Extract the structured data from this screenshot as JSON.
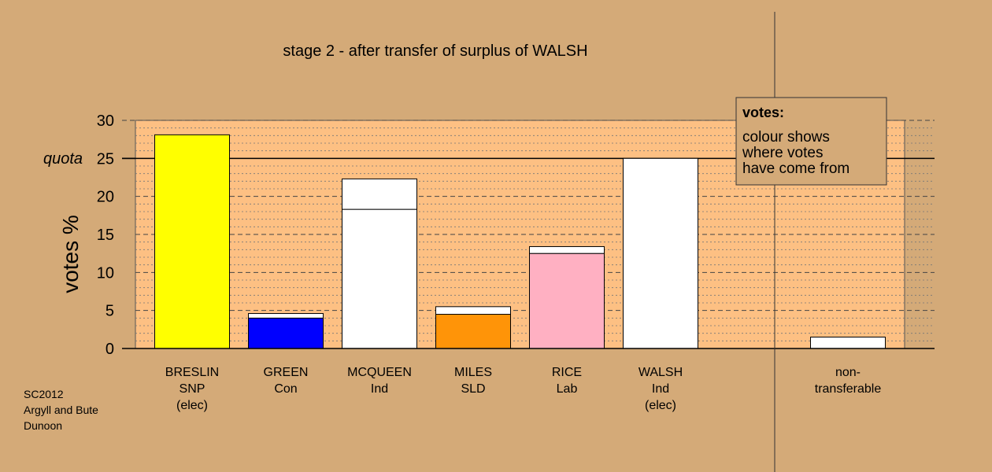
{
  "chart_data": {
    "type": "bar",
    "title": "stage 2 - after transfer of surplus of WALSH",
    "ylabel": "votes %",
    "ylim": [
      0,
      30
    ],
    "yticks": [
      0,
      5,
      10,
      15,
      20,
      25,
      30
    ],
    "quota": {
      "label": "quota",
      "value": 25
    },
    "categories": [
      {
        "lines": [
          "BRESLIN",
          "SNP",
          "(elec)"
        ],
        "base": 28.1,
        "base_color": "#ffff00",
        "transfer": 0
      },
      {
        "lines": [
          "GREEN",
          "Con"
        ],
        "base": 4.0,
        "base_color": "#0000ff",
        "transfer": 0.6
      },
      {
        "lines": [
          "MCQUEEN",
          "Ind"
        ],
        "base": 18.3,
        "base_color": "#ffffff",
        "transfer": 4.0
      },
      {
        "lines": [
          "MILES",
          "SLD"
        ],
        "base": 4.5,
        "base_color": "#ff9408",
        "transfer": 1.0
      },
      {
        "lines": [
          "RICE",
          "Lab"
        ],
        "base": 12.5,
        "base_color": "#ffb0c2",
        "transfer": 0.9
      },
      {
        "lines": [
          "WALSH",
          "Ind",
          "(elec)"
        ],
        "base": 25.0,
        "base_color": "#ffffff",
        "transfer": 0
      },
      {
        "lines": [
          "non-",
          "transferable"
        ],
        "base": 0,
        "base_color": "#ffffff",
        "transfer": 1.5
      }
    ],
    "legend": {
      "title": "votes:",
      "lines": [
        "colour shows",
        "where votes",
        "have come from"
      ],
      "placement": "top-right"
    },
    "grid": true
  },
  "footer": {
    "lines": [
      "SC2012",
      "Argyll and Bute",
      "Dunoon"
    ]
  },
  "colors": {
    "background": "#d4aa78",
    "plot_background": "#fdc083",
    "transfer": "#ffffff"
  }
}
